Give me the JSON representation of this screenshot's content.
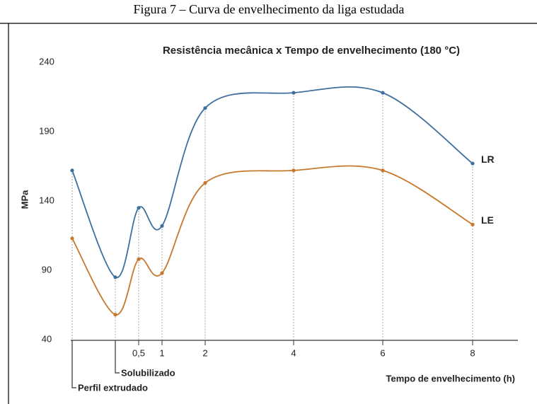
{
  "caption": "Figura 7 – Curva de envelhecimento da liga estudada",
  "chart_data": {
    "type": "line",
    "title": "Resistência mecânica x Tempo de envelhecimento (180 °C)",
    "y_label": "MPa",
    "x_label": "Tempo de envelhecimento (h)",
    "categories": [
      null,
      null,
      "0,5",
      "1",
      "2",
      "4",
      "6",
      "8"
    ],
    "annotations": [
      "Perfil extrudado",
      "Solubilizado"
    ],
    "series": [
      {
        "name": "LR",
        "color": "#3f6f9e",
        "values": [
          162,
          85,
          135,
          122,
          207,
          218,
          218,
          167
        ]
      },
      {
        "name": "LE",
        "color": "#c8782c",
        "values": [
          113,
          58,
          98,
          88,
          153,
          162,
          162,
          123
        ]
      }
    ],
    "ylim": [
      40,
      240
    ],
    "yticks": [
      40,
      90,
      140,
      190,
      240
    ],
    "grid": false
  }
}
